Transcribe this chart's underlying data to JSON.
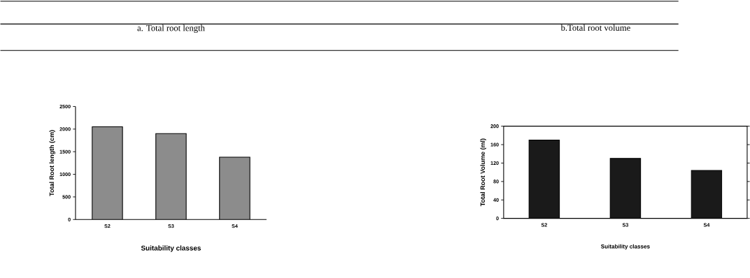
{
  "chart_data": [
    {
      "type": "bar",
      "title": "a. Total root length",
      "xlabel": "Suitability classes",
      "ylabel": "Total Root length (cm)",
      "categories": [
        "S2",
        "S3",
        "S4"
      ],
      "values": [
        2050,
        1900,
        1380
      ],
      "color": "#8c8c8c",
      "ylim": [
        0,
        2500
      ],
      "yticks": [
        0,
        500,
        1000,
        1500,
        2000,
        2500
      ]
    },
    {
      "type": "bar",
      "title": "b.Total root volume",
      "xlabel": "Suitability classes",
      "ylabel": "Total Root Volume (ml)",
      "categories": [
        "S2",
        "S3",
        "S4"
      ],
      "values": [
        170,
        130,
        104
      ],
      "color": "#1a1a1a",
      "ylim": [
        0,
        200
      ],
      "yticks": [
        0,
        40,
        80,
        120,
        160,
        200
      ]
    }
  ]
}
